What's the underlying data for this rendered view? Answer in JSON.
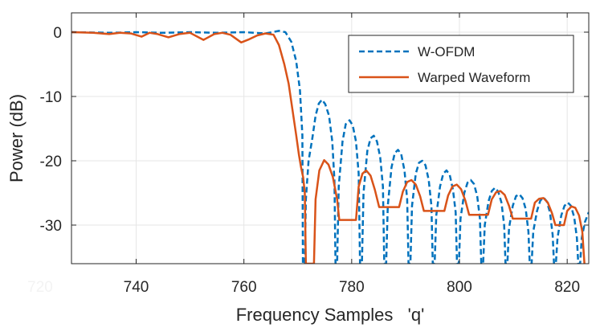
{
  "chart_data": {
    "type": "line",
    "title": "",
    "xlabel": "Frequency Samples   'q'",
    "ylabel": "Power (dB)",
    "xlim": [
      728,
      824
    ],
    "ylim": [
      -36,
      3
    ],
    "x_ticks": [
      720,
      740,
      760,
      780,
      800,
      820
    ],
    "y_ticks": [
      0,
      -10,
      -20,
      -30
    ],
    "grid": true,
    "legend": {
      "position": "top-right",
      "entries": [
        "W-OFDM",
        "Warped Waveform"
      ]
    },
    "series": [
      {
        "name": "W-OFDM",
        "color": "#0072BD",
        "style": "dashed",
        "points": [
          [
            728,
            0
          ],
          [
            735,
            -0.1
          ],
          [
            740,
            0
          ],
          [
            745,
            -0.1
          ],
          [
            750,
            0
          ],
          [
            755,
            -0.1
          ],
          [
            760,
            0
          ],
          [
            764,
            -0.2
          ],
          [
            766.5,
            0.2
          ],
          [
            767.7,
            0
          ],
          [
            768.8,
            -1.5
          ],
          [
            769.7,
            -4.5
          ],
          [
            770.4,
            -9
          ],
          [
            770.85,
            -16
          ],
          [
            770.95,
            -36
          ],
          [
            771.3,
            -36
          ],
          [
            771.5,
            -26
          ],
          [
            772,
            -20
          ],
          [
            772.7,
            -16.5
          ],
          [
            773.3,
            -13
          ],
          [
            773.9,
            -11.1
          ],
          [
            774.5,
            -10.5
          ],
          [
            775.1,
            -11.2
          ],
          [
            775.8,
            -13
          ],
          [
            776.4,
            -17
          ],
          [
            776.8,
            -23
          ],
          [
            777,
            -36
          ],
          [
            777.3,
            -36
          ],
          [
            777.6,
            -24
          ],
          [
            778.3,
            -17
          ],
          [
            778.9,
            -14.3
          ],
          [
            779.6,
            -13.7
          ],
          [
            780.2,
            -14.5
          ],
          [
            780.8,
            -17
          ],
          [
            781.3,
            -22
          ],
          [
            781.55,
            -36
          ],
          [
            781.9,
            -36
          ],
          [
            782.2,
            -25
          ],
          [
            782.9,
            -18.5
          ],
          [
            783.5,
            -16.5
          ],
          [
            784.1,
            -16.1
          ],
          [
            784.7,
            -17
          ],
          [
            785.3,
            -19.5
          ],
          [
            785.8,
            -24
          ],
          [
            786.05,
            -36
          ],
          [
            786.4,
            -36
          ],
          [
            786.7,
            -27
          ],
          [
            787.4,
            -21
          ],
          [
            788,
            -18.8
          ],
          [
            788.6,
            -18.3
          ],
          [
            789.2,
            -19
          ],
          [
            789.8,
            -21.5
          ],
          [
            790.3,
            -26
          ],
          [
            790.55,
            -36
          ],
          [
            790.9,
            -36
          ],
          [
            791.2,
            -27
          ],
          [
            791.9,
            -22
          ],
          [
            792.5,
            -20.3
          ],
          [
            793.1,
            -20
          ],
          [
            793.7,
            -20.7
          ],
          [
            794.3,
            -23
          ],
          [
            794.8,
            -27
          ],
          [
            795.05,
            -36
          ],
          [
            795.4,
            -36
          ],
          [
            795.7,
            -28.5
          ],
          [
            796.4,
            -24
          ],
          [
            797,
            -22
          ],
          [
            797.6,
            -21.5
          ],
          [
            798.2,
            -22.2
          ],
          [
            798.8,
            -24.5
          ],
          [
            799.3,
            -28
          ],
          [
            799.55,
            -36
          ],
          [
            799.9,
            -36
          ],
          [
            800.2,
            -29
          ],
          [
            800.9,
            -25
          ],
          [
            801.5,
            -23.4
          ],
          [
            802.1,
            -23
          ],
          [
            802.7,
            -23.6
          ],
          [
            803.3,
            -25.5
          ],
          [
            803.8,
            -29
          ],
          [
            804.05,
            -36
          ],
          [
            804.4,
            -36
          ],
          [
            804.7,
            -30
          ],
          [
            805.4,
            -26.3
          ],
          [
            806,
            -24.7
          ],
          [
            806.6,
            -24.2
          ],
          [
            807.2,
            -24.8
          ],
          [
            807.8,
            -26.5
          ],
          [
            808.3,
            -30
          ],
          [
            808.55,
            -36
          ],
          [
            808.9,
            -36
          ],
          [
            809.2,
            -30.5
          ],
          [
            809.9,
            -27
          ],
          [
            810.5,
            -25.5
          ],
          [
            811.1,
            -25.2
          ],
          [
            811.7,
            -25.8
          ],
          [
            812.3,
            -27.5
          ],
          [
            812.8,
            -31
          ],
          [
            813.05,
            -36
          ],
          [
            813.4,
            -36
          ],
          [
            813.7,
            -31
          ],
          [
            814.4,
            -27.8
          ],
          [
            815,
            -26.2
          ],
          [
            815.6,
            -25.7
          ],
          [
            816.2,
            -26.3
          ],
          [
            816.8,
            -28
          ],
          [
            817.3,
            -31.5
          ],
          [
            817.55,
            -36
          ],
          [
            817.9,
            -36
          ],
          [
            818.2,
            -32
          ],
          [
            818.9,
            -28.5
          ],
          [
            819.5,
            -27
          ],
          [
            820.1,
            -26.5
          ],
          [
            820.7,
            -27
          ],
          [
            821.3,
            -28.8
          ],
          [
            821.8,
            -32
          ],
          [
            822.05,
            -36
          ],
          [
            822.4,
            -36
          ],
          [
            822.7,
            -32
          ],
          [
            823.3,
            -29.5
          ],
          [
            824,
            -28
          ]
        ]
      },
      {
        "name": "Warped Waveform",
        "color": "#D95319",
        "style": "solid",
        "points": [
          [
            728,
            0
          ],
          [
            732,
            -0.1
          ],
          [
            735,
            -0.3
          ],
          [
            737,
            -0.1
          ],
          [
            739,
            -0.2
          ],
          [
            741,
            -0.7
          ],
          [
            742.5,
            -0.1
          ],
          [
            744,
            -0.3
          ],
          [
            746,
            -0.8
          ],
          [
            748,
            -0.3
          ],
          [
            750,
            -0.1
          ],
          [
            752.5,
            -1.2
          ],
          [
            754.5,
            -0.3
          ],
          [
            756,
            -0.1
          ],
          [
            757.5,
            -0.4
          ],
          [
            759.5,
            -1.6
          ],
          [
            761,
            -1.1
          ],
          [
            762.5,
            -0.5
          ],
          [
            764,
            -0.2
          ],
          [
            765.5,
            -0.4
          ],
          [
            766.5,
            -2
          ],
          [
            767.5,
            -5
          ],
          [
            768.3,
            -8
          ],
          [
            769,
            -12
          ],
          [
            769.7,
            -16
          ],
          [
            770.2,
            -19
          ],
          [
            770.6,
            -21
          ],
          [
            771,
            -22.6
          ],
          [
            771.3,
            -25
          ],
          [
            771.5,
            -36
          ],
          [
            773,
            -36
          ],
          [
            773.3,
            -26
          ],
          [
            774,
            -21.5
          ],
          [
            774.9,
            -19.9
          ],
          [
            775.7,
            -20.6
          ],
          [
            776.5,
            -22.5
          ],
          [
            777.3,
            -26
          ],
          [
            777.7,
            -29.2
          ],
          [
            780.8,
            -29.2
          ],
          [
            781.3,
            -24
          ],
          [
            782,
            -22
          ],
          [
            782.7,
            -21.5
          ],
          [
            783.5,
            -22.3
          ],
          [
            784.3,
            -24.5
          ],
          [
            785.1,
            -27.2
          ],
          [
            788.8,
            -27.2
          ],
          [
            789.5,
            -24.8
          ],
          [
            790.3,
            -23.3
          ],
          [
            791.1,
            -23
          ],
          [
            791.9,
            -23.7
          ],
          [
            792.7,
            -25.5
          ],
          [
            793.4,
            -27.8
          ],
          [
            797.2,
            -27.8
          ],
          [
            797.9,
            -25.4
          ],
          [
            798.7,
            -24
          ],
          [
            799.5,
            -23.7
          ],
          [
            800.3,
            -24.4
          ],
          [
            801.1,
            -26.2
          ],
          [
            801.8,
            -28.4
          ],
          [
            805.3,
            -28.4
          ],
          [
            806,
            -26
          ],
          [
            806.8,
            -24.9
          ],
          [
            807.6,
            -24.7
          ],
          [
            808.4,
            -25.3
          ],
          [
            809.2,
            -27
          ],
          [
            809.9,
            -29
          ],
          [
            813.3,
            -29
          ],
          [
            814,
            -26.5
          ],
          [
            814.8,
            -25.9
          ],
          [
            815.6,
            -25.8
          ],
          [
            816.4,
            -26.5
          ],
          [
            817.2,
            -28.2
          ],
          [
            817.8,
            -30
          ],
          [
            819.4,
            -30
          ],
          [
            820,
            -27.8
          ],
          [
            820.8,
            -27.1
          ],
          [
            821.5,
            -27.3
          ],
          [
            822.2,
            -28.5
          ],
          [
            822.8,
            -31
          ],
          [
            823.2,
            -36
          ]
        ]
      }
    ]
  }
}
